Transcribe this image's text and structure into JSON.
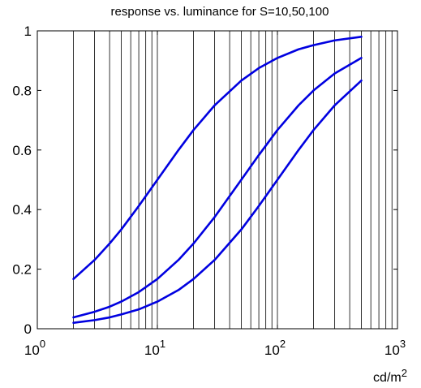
{
  "chart_data": {
    "type": "line",
    "title": "response vs. luminance for S=10,50,100",
    "xlabel_base": "cd/m",
    "xlabel_exp": "2",
    "ylabel": "",
    "x_scale": "log",
    "xlim": [
      1,
      1000
    ],
    "ylim": [
      0,
      1
    ],
    "grid": "x-major-and-minor",
    "x_ticks": [
      {
        "base": "10",
        "exp": "0",
        "value": 1
      },
      {
        "base": "10",
        "exp": "1",
        "value": 10
      },
      {
        "base": "10",
        "exp": "2",
        "value": 100
      },
      {
        "base": "10",
        "exp": "3",
        "value": 1000
      }
    ],
    "y_ticks": [
      {
        "label": "0",
        "value": 0
      },
      {
        "label": "0.2",
        "value": 0.2
      },
      {
        "label": "0.4",
        "value": 0.4
      },
      {
        "label": "0.6",
        "value": 0.6
      },
      {
        "label": "0.8",
        "value": 0.8
      },
      {
        "label": "1",
        "value": 1
      }
    ],
    "line_color": "#0000e0",
    "x": [
      2,
      3,
      4,
      5,
      7,
      10,
      15,
      20,
      30,
      50,
      70,
      100,
      150,
      200,
      300,
      500
    ],
    "series": [
      {
        "values": [
          0.167,
          0.231,
          0.286,
          0.333,
          0.412,
          0.5,
          0.6,
          0.667,
          0.75,
          0.833,
          0.875,
          0.909,
          0.938,
          0.952,
          0.968,
          0.98
        ]
      },
      {
        "values": [
          0.038,
          0.057,
          0.074,
          0.091,
          0.123,
          0.167,
          0.231,
          0.286,
          0.375,
          0.5,
          0.583,
          0.667,
          0.75,
          0.8,
          0.857,
          0.909
        ]
      },
      {
        "values": [
          0.02,
          0.029,
          0.038,
          0.048,
          0.065,
          0.091,
          0.13,
          0.167,
          0.231,
          0.333,
          0.412,
          0.5,
          0.6,
          0.667,
          0.75,
          0.833
        ]
      }
    ]
  }
}
